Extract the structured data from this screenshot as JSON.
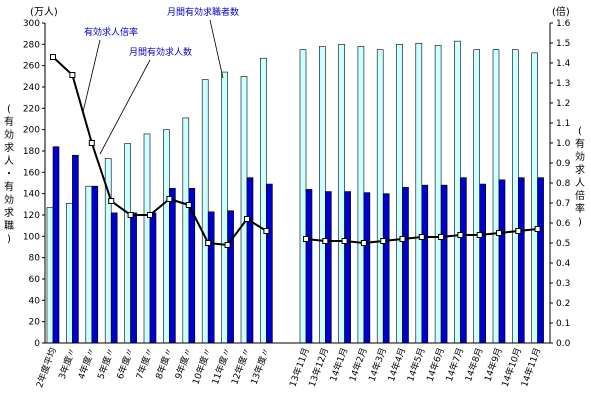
{
  "chart_data": {
    "type": "bar",
    "left_axis": {
      "unit": "(万人)",
      "label_chars": [
        "(",
        "有",
        "効",
        "求",
        "人",
        "・",
        "有",
        "効",
        "求",
        "職",
        ")"
      ],
      "min": 0,
      "max": 300,
      "step": 20
    },
    "right_axis": {
      "unit": "(倍)",
      "label_chars": [
        "(",
        "有",
        "効",
        "求",
        "人",
        "倍",
        "率",
        ")"
      ],
      "min": 0.0,
      "max": 1.6,
      "step": 0.1
    },
    "categories": [
      "2年度平均",
      "3年度〃",
      "4年度〃",
      "5年度〃",
      "6年度〃",
      "7年度〃",
      "8年度〃",
      "9年度〃",
      "10年度〃",
      "11年度〃",
      "12年度〃",
      "13年度〃",
      "13年11月",
      "13年12月",
      "14年1月",
      "14年2月",
      "14年3月",
      "14年4月",
      "14年5月",
      "14年6月",
      "14年7月",
      "14年8月",
      "14年9月",
      "14年10月",
      "14年11月"
    ],
    "series": [
      {
        "name": "月間有効求職者数",
        "type": "bar",
        "axis": "left",
        "color": "#ccffff",
        "values": [
          127,
          131,
          147,
          173,
          187,
          196,
          200,
          211,
          247,
          254,
          250,
          267,
          275,
          278,
          280,
          278,
          275,
          280,
          281,
          279,
          283,
          275,
          275,
          275,
          272
        ]
      },
      {
        "name": "月間有効求人数",
        "type": "bar",
        "axis": "left",
        "color": "#0000cc",
        "values": [
          184,
          176,
          147,
          122,
          122,
          122,
          145,
          145,
          123,
          124,
          155,
          149,
          144,
          142,
          142,
          141,
          140,
          146,
          148,
          148,
          155,
          149,
          153,
          155,
          155
        ]
      },
      {
        "name": "有効求人倍率",
        "type": "line",
        "axis": "right",
        "color": "#000000",
        "values": [
          1.43,
          1.34,
          1.0,
          0.71,
          0.64,
          0.64,
          0.72,
          0.69,
          0.5,
          0.49,
          0.62,
          0.56,
          0.52,
          0.51,
          0.51,
          0.5,
          0.51,
          0.52,
          0.53,
          0.53,
          0.54,
          0.54,
          0.55,
          0.56,
          0.57
        ]
      }
    ],
    "annotations": [
      "有効求人倍率",
      "月間有効求人数",
      "月間有効求職者数"
    ]
  }
}
